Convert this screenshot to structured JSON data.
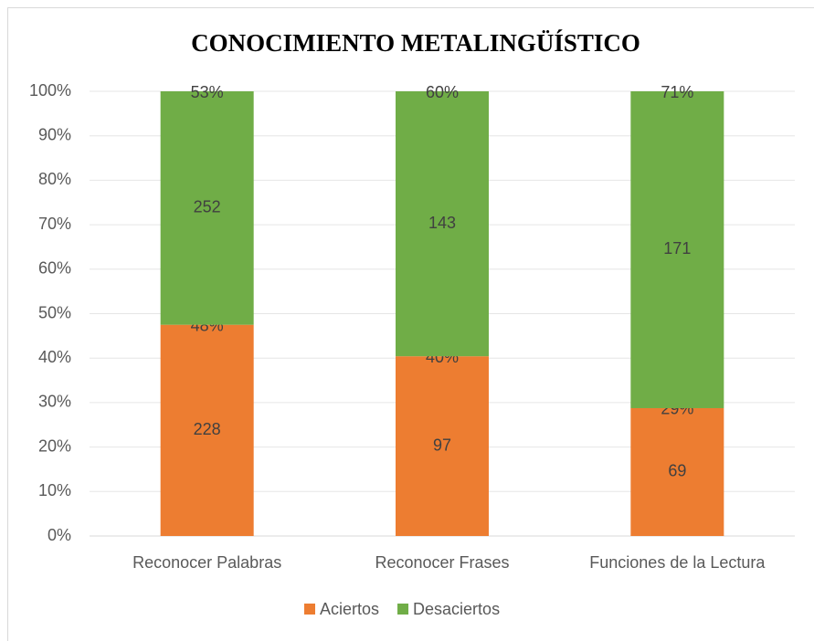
{
  "chart_data": {
    "type": "stacked_percent_bar",
    "title": "CONOCIMIENTO METALINGÜÍSTICO",
    "categories": [
      "Reconocer Palabras",
      "Reconocer Frases",
      "Funciones de la Lectura"
    ],
    "series": [
      {
        "name": "Aciertos",
        "color": "#ed7d31",
        "values": [
          228,
          97,
          69
        ],
        "percentages": [
          48,
          40,
          29
        ],
        "percentage_labels": [
          "48%",
          "40%",
          "29%"
        ]
      },
      {
        "name": "Desaciertos",
        "color": "#70ad47",
        "values": [
          252,
          143,
          171
        ],
        "percentages": [
          53,
          60,
          71
        ],
        "percentage_labels": [
          "53%",
          "60%",
          "71%"
        ]
      }
    ],
    "ylim": [
      0,
      100
    ],
    "yticks": [
      {
        "value": 0,
        "label": "0%"
      },
      {
        "value": 10,
        "label": "10%"
      },
      {
        "value": 20,
        "label": "20%"
      },
      {
        "value": 30,
        "label": "30%"
      },
      {
        "value": 40,
        "label": "40%"
      },
      {
        "value": 50,
        "label": "50%"
      },
      {
        "value": 60,
        "label": "60%"
      },
      {
        "value": 70,
        "label": "70%"
      },
      {
        "value": 80,
        "label": "80%"
      },
      {
        "value": 90,
        "label": "90%"
      },
      {
        "value": 100,
        "label": "100%"
      }
    ],
    "grid": true,
    "legend": "bottom"
  }
}
